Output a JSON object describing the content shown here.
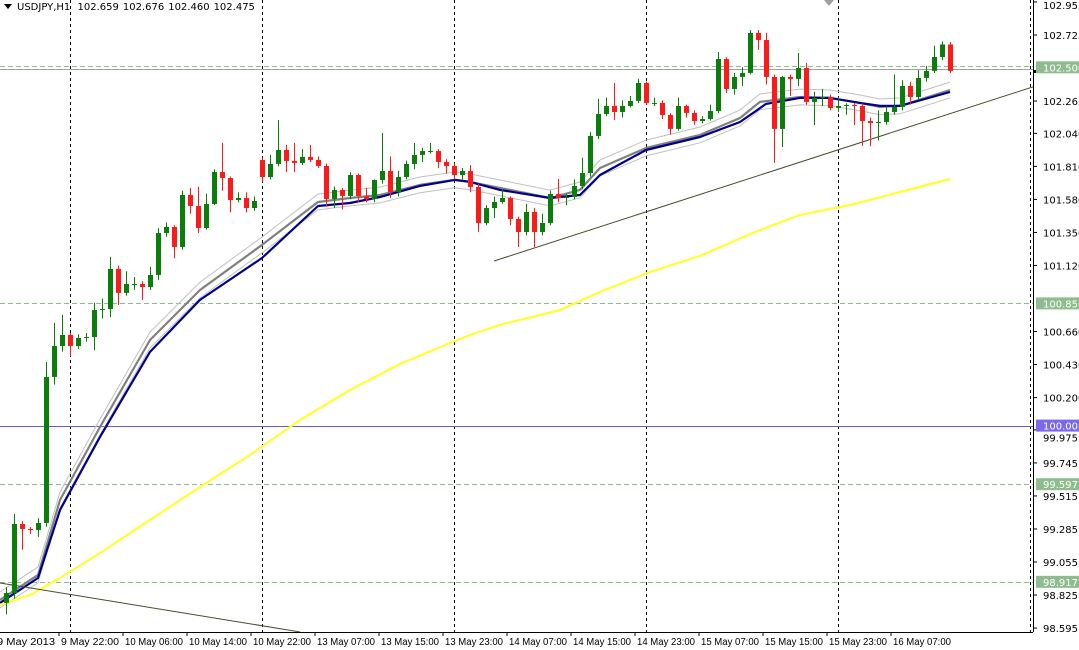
{
  "header": {
    "symbol": "USDJPY,H1",
    "open": "102.659",
    "high": "102.676",
    "low": "102.460",
    "close": "102.475"
  },
  "chart_data": {
    "type": "candlestick",
    "title": "USDJPY,H1",
    "ylim": [
      98.55,
      102.97
    ],
    "y_ticks": [
      "102.955",
      "102.725",
      "102.265",
      "102.040",
      "101.810",
      "101.580",
      "101.350",
      "101.120",
      "100.660",
      "100.430",
      "100.200",
      "99.975",
      "99.745",
      "99.515",
      "99.285",
      "99.055",
      "98.825",
      "98.595"
    ],
    "x_labels": [
      {
        "bar": -2,
        "label": "9 May 2013"
      },
      {
        "bar": 6,
        "label": "9 May 22:00"
      },
      {
        "bar": 14,
        "label": "10 May 06:00"
      },
      {
        "bar": 22,
        "label": "10 May 14:00"
      },
      {
        "bar": 30,
        "label": "10 May 22:00"
      },
      {
        "bar": 38,
        "label": "13 May 07:00"
      },
      {
        "bar": 46,
        "label": "13 May 15:00"
      },
      {
        "bar": 54,
        "label": "13 May 23:00"
      },
      {
        "bar": 62,
        "label": "14 May 07:00"
      },
      {
        "bar": 70,
        "label": "14 May 15:00"
      },
      {
        "bar": 78,
        "label": "14 May 23:00"
      },
      {
        "bar": 86,
        "label": "15 May 07:00"
      },
      {
        "bar": 94,
        "label": "15 May 15:00"
      },
      {
        "bar": 102,
        "label": "15 May 23:00"
      },
      {
        "bar": 110,
        "label": "16 May 07:00"
      }
    ],
    "vertical_grid_bars": [
      8,
      32,
      56,
      80,
      104,
      128
    ],
    "ohlc": [
      [
        98.77,
        98.88,
        98.69,
        98.839
      ],
      [
        98.839,
        99.389,
        98.8,
        99.32
      ],
      [
        99.32,
        99.34,
        99.14,
        99.285
      ],
      [
        99.285,
        99.3,
        99.25,
        99.278
      ],
      [
        99.278,
        99.36,
        99.23,
        99.327
      ],
      [
        99.327,
        100.448,
        99.3,
        100.344
      ],
      [
        100.344,
        100.72,
        100.29,
        100.559
      ],
      [
        100.559,
        100.776,
        100.52,
        100.636
      ],
      [
        100.636,
        100.65,
        100.49,
        100.559
      ],
      [
        100.559,
        100.64,
        100.54,
        100.615
      ],
      [
        100.615,
        100.65,
        100.59,
        100.622
      ],
      [
        100.622,
        100.86,
        100.53,
        100.81
      ],
      [
        100.81,
        100.89,
        100.75,
        100.817
      ],
      [
        100.817,
        101.18,
        100.76,
        101.096
      ],
      [
        101.096,
        101.12,
        100.845,
        100.929
      ],
      [
        100.929,
        101.08,
        100.91,
        100.991
      ],
      [
        100.991,
        101.04,
        100.95,
        100.991
      ],
      [
        100.991,
        101.01,
        100.88,
        100.97
      ],
      [
        100.97,
        101.11,
        100.95,
        101.054
      ],
      [
        101.054,
        101.38,
        101.02,
        101.346
      ],
      [
        101.346,
        101.42,
        101.32,
        101.388
      ],
      [
        101.388,
        101.4,
        101.17,
        101.249
      ],
      [
        101.249,
        101.64,
        101.23,
        101.611
      ],
      [
        101.611,
        101.66,
        101.48,
        101.534
      ],
      [
        101.534,
        101.667,
        101.346,
        101.381
      ],
      [
        101.381,
        101.62,
        101.37,
        101.548
      ],
      [
        101.548,
        101.79,
        101.54,
        101.771
      ],
      [
        101.771,
        101.973,
        101.64,
        101.729
      ],
      [
        101.729,
        101.74,
        101.49,
        101.576
      ],
      [
        101.576,
        101.63,
        101.56,
        101.59
      ],
      [
        101.59,
        101.63,
        101.49,
        101.52
      ],
      [
        101.52,
        101.6,
        101.5,
        101.569
      ],
      [
        101.855,
        101.87,
        101.7,
        101.736
      ],
      [
        101.736,
        101.89,
        101.72,
        101.827
      ],
      [
        101.827,
        102.133,
        101.81,
        101.924
      ],
      [
        101.924,
        101.96,
        101.77,
        101.848
      ],
      [
        101.848,
        101.973,
        101.77,
        101.834
      ],
      [
        101.834,
        101.93,
        101.82,
        101.876
      ],
      [
        101.876,
        101.96,
        101.84,
        101.855
      ],
      [
        101.855,
        101.88,
        101.8,
        101.813
      ],
      [
        101.813,
        101.83,
        101.528,
        101.583
      ],
      [
        101.583,
        101.67,
        101.52,
        101.646
      ],
      [
        101.646,
        101.66,
        101.51,
        101.604
      ],
      [
        101.604,
        101.77,
        101.58,
        101.75
      ],
      [
        101.75,
        101.76,
        101.56,
        101.604
      ],
      [
        101.604,
        101.66,
        101.56,
        101.583
      ],
      [
        101.583,
        101.72,
        101.56,
        101.715
      ],
      [
        101.715,
        102.043,
        101.69,
        101.778
      ],
      [
        101.778,
        101.88,
        101.59,
        101.632
      ],
      [
        101.632,
        101.78,
        101.6,
        101.736
      ],
      [
        101.736,
        101.85,
        101.72,
        101.827
      ],
      [
        101.827,
        101.973,
        101.79,
        101.89
      ],
      [
        101.89,
        101.94,
        101.84,
        101.917
      ],
      [
        101.917,
        101.973,
        101.9,
        101.917
      ],
      [
        101.917,
        101.93,
        101.8,
        101.841
      ],
      [
        101.841,
        101.86,
        101.76,
        101.813
      ],
      [
        101.813,
        101.83,
        101.72,
        101.75
      ],
      [
        101.75,
        101.8,
        101.72,
        101.778
      ],
      [
        101.778,
        101.82,
        101.63,
        101.667
      ],
      [
        101.667,
        101.69,
        101.353,
        101.416
      ],
      [
        101.416,
        101.54,
        101.4,
        101.52
      ],
      [
        101.52,
        101.6,
        101.45,
        101.562
      ],
      [
        101.562,
        101.65,
        101.55,
        101.59
      ],
      [
        101.59,
        101.6,
        101.4,
        101.444
      ],
      [
        101.444,
        101.46,
        101.249,
        101.353
      ],
      [
        101.353,
        101.55,
        101.33,
        101.493
      ],
      [
        101.493,
        101.52,
        101.249,
        101.353
      ],
      [
        101.353,
        101.48,
        101.33,
        101.416
      ],
      [
        101.416,
        101.64,
        101.4,
        101.618
      ],
      [
        101.618,
        101.722,
        101.56,
        101.59
      ],
      [
        101.59,
        101.62,
        101.54,
        101.597
      ],
      [
        101.597,
        101.72,
        101.58,
        101.674
      ],
      [
        101.674,
        101.87,
        101.65,
        101.764
      ],
      [
        101.764,
        102.05,
        101.74,
        102.022
      ],
      [
        102.022,
        102.28,
        102.0,
        102.175
      ],
      [
        102.175,
        102.29,
        102.16,
        102.231
      ],
      [
        102.231,
        102.391,
        102.133,
        102.189
      ],
      [
        102.189,
        102.27,
        102.15,
        102.231
      ],
      [
        102.231,
        102.3,
        102.22,
        102.266
      ],
      [
        102.266,
        102.42,
        102.25,
        102.391
      ],
      [
        102.391,
        102.4,
        102.24,
        102.252
      ],
      [
        102.252,
        102.29,
        102.23,
        102.252
      ],
      [
        102.252,
        102.27,
        102.14,
        102.168
      ],
      [
        102.168,
        102.18,
        102.03,
        102.071
      ],
      [
        102.071,
        102.29,
        102.06,
        102.231
      ],
      [
        102.231,
        102.24,
        102.15,
        102.182
      ],
      [
        102.182,
        102.2,
        102.1,
        102.126
      ],
      [
        102.126,
        102.16,
        102.11,
        102.14
      ],
      [
        102.14,
        102.24,
        102.13,
        102.196
      ],
      [
        102.196,
        102.607,
        102.18,
        102.558
      ],
      [
        102.558,
        102.57,
        102.321,
        102.349
      ],
      [
        102.349,
        102.46,
        102.31,
        102.433
      ],
      [
        102.433,
        102.5,
        102.37,
        102.461
      ],
      [
        102.461,
        102.76,
        102.45,
        102.739
      ],
      [
        102.739,
        102.76,
        102.621,
        102.69
      ],
      [
        102.69,
        102.74,
        102.38,
        102.433
      ],
      [
        102.433,
        102.45,
        101.834,
        102.071
      ],
      [
        102.071,
        102.44,
        101.945,
        102.433
      ],
      [
        102.433,
        102.45,
        102.3,
        102.419
      ],
      [
        102.419,
        102.6,
        102.37,
        102.495
      ],
      [
        102.495,
        102.53,
        102.24,
        102.259
      ],
      [
        102.259,
        102.33,
        102.098,
        102.287
      ],
      [
        102.287,
        102.35,
        102.23,
        102.293
      ],
      [
        102.293,
        102.31,
        102.2,
        102.217
      ],
      [
        102.217,
        102.29,
        102.19,
        102.231
      ],
      [
        102.231,
        102.25,
        102.17,
        102.238
      ],
      [
        102.238,
        102.25,
        102.098,
        102.231
      ],
      [
        102.231,
        102.25,
        101.952,
        102.126
      ],
      [
        102.126,
        102.15,
        101.95,
        102.112
      ],
      [
        102.112,
        102.2,
        101.99,
        102.119
      ],
      [
        102.119,
        102.23,
        102.1,
        102.189
      ],
      [
        102.189,
        102.45,
        102.17,
        102.224
      ],
      [
        102.224,
        102.41,
        102.2,
        102.37
      ],
      [
        102.37,
        102.4,
        102.24,
        102.293
      ],
      [
        102.293,
        102.48,
        102.27,
        102.426
      ],
      [
        102.426,
        102.51,
        102.4,
        102.475
      ],
      [
        102.475,
        102.65,
        102.46,
        102.572
      ],
      [
        102.572,
        102.68,
        102.55,
        102.659
      ],
      [
        102.659,
        102.676,
        102.46,
        102.475
      ]
    ],
    "indicators": [
      {
        "color": "#808080",
        "points": [
          [
            -0.75,
            98.791
          ],
          [
            4,
            98.965
          ],
          [
            6.75,
            99.487
          ],
          [
            11.75,
            99.995
          ],
          [
            18,
            100.601
          ],
          [
            24.25,
            100.949
          ],
          [
            32,
            101.263
          ],
          [
            39,
            101.562
          ],
          [
            43,
            101.59
          ],
          [
            46.75,
            101.611
          ],
          [
            51.75,
            101.681
          ],
          [
            56.1,
            101.716
          ],
          [
            58,
            101.702
          ],
          [
            61.75,
            101.66
          ],
          [
            68,
            101.59
          ],
          [
            71.75,
            101.646
          ],
          [
            74.25,
            101.799
          ],
          [
            80,
            101.938
          ],
          [
            86.75,
            102.029
          ],
          [
            91.75,
            102.147
          ],
          [
            94.25,
            102.259
          ],
          [
            99.25,
            102.293
          ],
          [
            103,
            102.287
          ],
          [
            106.75,
            102.252
          ],
          [
            109.25,
            102.224
          ],
          [
            111.75,
            102.231
          ],
          [
            118,
            102.342
          ]
        ],
        "envelope": 0.055,
        "envelope_color": "#c0c0c0"
      },
      {
        "color": "#00008b",
        "points": [
          [
            -0.75,
            98.77
          ],
          [
            4,
            98.944
          ],
          [
            6.75,
            99.417
          ],
          [
            11.75,
            99.926
          ],
          [
            18,
            100.518
          ],
          [
            24.25,
            100.88
          ],
          [
            32,
            101.172
          ],
          [
            39,
            101.534
          ],
          [
            43,
            101.555
          ],
          [
            46.75,
            101.597
          ],
          [
            51.75,
            101.674
          ],
          [
            56.1,
            101.716
          ],
          [
            58,
            101.702
          ],
          [
            61.75,
            101.646
          ],
          [
            68,
            101.59
          ],
          [
            71.75,
            101.611
          ],
          [
            74.25,
            101.75
          ],
          [
            80,
            101.924
          ],
          [
            86.75,
            102.015
          ],
          [
            91.75,
            102.119
          ],
          [
            95,
            102.245
          ],
          [
            99.25,
            102.287
          ],
          [
            103,
            102.287
          ],
          [
            106.75,
            102.252
          ],
          [
            109.25,
            102.231
          ],
          [
            111.75,
            102.231
          ],
          [
            118,
            102.328
          ]
        ]
      },
      {
        "color": "#ffff33",
        "points": [
          [
            -0.75,
            98.756
          ],
          [
            3,
            98.825
          ],
          [
            6.75,
            98.944
          ],
          [
            11.75,
            99.118
          ],
          [
            18,
            99.348
          ],
          [
            24.25,
            99.578
          ],
          [
            30.5,
            99.8
          ],
          [
            36.75,
            100.044
          ],
          [
            43,
            100.253
          ],
          [
            49.25,
            100.434
          ],
          [
            55.5,
            100.58
          ],
          [
            58,
            100.636
          ],
          [
            61.75,
            100.706
          ],
          [
            69.25,
            100.81
          ],
          [
            74.25,
            100.936
          ],
          [
            80.5,
            101.075
          ],
          [
            86.75,
            101.186
          ],
          [
            93,
            101.339
          ],
          [
            99.25,
            101.472
          ],
          [
            105.5,
            101.541
          ],
          [
            111.75,
            101.632
          ],
          [
            118,
            101.722
          ]
        ]
      }
    ],
    "trendlines": [
      {
        "from": [
          61,
          101.151
        ],
        "to": [
          134.1,
          102.467
        ],
        "color": "#4b4b2b"
      },
      {
        "from": [
          -0.75,
          98.909
        ],
        "to": [
          36.75,
          98.568
        ],
        "color": "#4b4b2b"
      }
    ],
    "price_levels": [
      {
        "price": 102.5,
        "label": "102.500",
        "color": "#8fbc8f",
        "line": "#a0a0a0",
        "style": "solid+dash"
      },
      {
        "price": 100.856,
        "label": "100.856",
        "color": "#8fbc8f",
        "line": "#8fbc8f",
        "style": "dash"
      },
      {
        "price": 100.005,
        "label": "100.005",
        "color": "#7b68ee",
        "line": "#6a5acd",
        "style": "solid"
      },
      {
        "price": 99.597,
        "label": "99.597",
        "color": "#8fbc8f",
        "line": "#8fbc8f",
        "style": "dash"
      },
      {
        "price": 98.917,
        "label": "98.917",
        "color": "#8fbc8f",
        "line": "#8fbc8f",
        "style": "dash"
      }
    ],
    "bull_color": "#0a7d0a",
    "bear_color": "#ff1a1a"
  }
}
